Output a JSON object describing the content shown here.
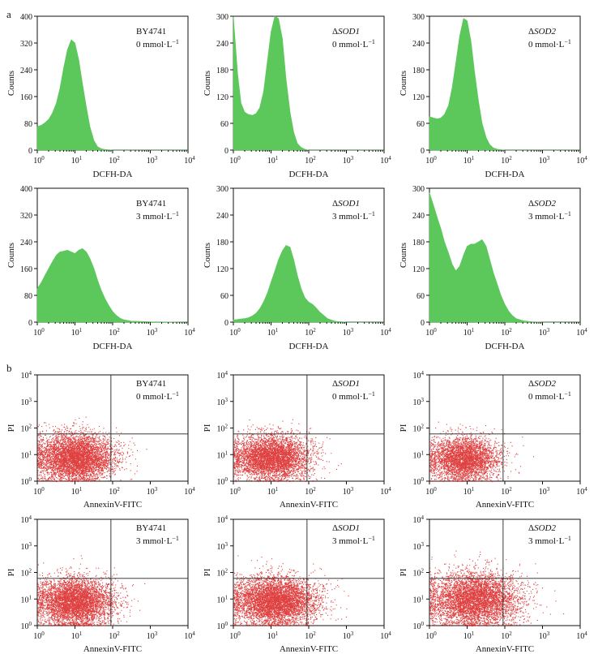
{
  "panel_labels": {
    "a": "a",
    "b": "b"
  },
  "histogram_axes": {
    "xlabel": "DCFH-DA",
    "ylabel": "Counts",
    "x_ticks": [
      1,
      10,
      100,
      1000,
      10000
    ],
    "x_tick_base": "10",
    "x_tick_exponents": [
      "0",
      "1",
      "2",
      "3",
      "4"
    ]
  },
  "scatter_axes": {
    "xlabel": "AnnexinV-FITC",
    "ylabel": "PI",
    "x_ticks": [
      1,
      10,
      100,
      1000,
      10000
    ],
    "y_ticks": [
      1,
      10,
      100,
      1000,
      10000
    ],
    "tick_base": "10",
    "tick_exponents": [
      "0",
      "1",
      "2",
      "3",
      "4"
    ]
  },
  "strains": {
    "wt": {
      "prefix": "",
      "name": "BY4741"
    },
    "sod1": {
      "prefix": "Δ",
      "name": "SOD1"
    },
    "sod2": {
      "prefix": "Δ",
      "name": "SOD2"
    }
  },
  "conditions": {
    "c0": {
      "conc": "0 mmol·L",
      "unit_exp": "−1"
    },
    "c3": {
      "conc": "3 mmol·L",
      "unit_exp": "−1"
    }
  },
  "colors": {
    "histogram_fill": "#5cc85c",
    "scatter_point": "#d92020",
    "axis": "#111111"
  },
  "chart_data": [
    {
      "type": "histogram",
      "panel": "a",
      "strain": "BY4741",
      "condition": "0 mmol·L−1",
      "xlabel": "DCFH-DA",
      "ylabel": "Counts",
      "x_scale": "log",
      "xlim": [
        1,
        10000
      ],
      "ylim": [
        0,
        400
      ],
      "y_ticks": [
        0,
        80,
        160,
        240,
        320,
        400
      ],
      "x": [
        1,
        1.3,
        1.6,
        2,
        2.5,
        3.2,
        4,
        5,
        6.3,
        8,
        10,
        12.6,
        15.8,
        20,
        25,
        32,
        40,
        50,
        63,
        79,
        100,
        1000,
        10000
      ],
      "counts": [
        70,
        75,
        82,
        92,
        110,
        140,
        185,
        245,
        300,
        330,
        320,
        270,
        200,
        130,
        70,
        28,
        10,
        4,
        2,
        1,
        0,
        0,
        0
      ]
    },
    {
      "type": "histogram",
      "panel": "a",
      "strain": "ΔSOD1",
      "condition": "0 mmol·L−1",
      "xlabel": "DCFH-DA",
      "ylabel": "Counts",
      "x_scale": "log",
      "xlim": [
        1,
        10000
      ],
      "ylim": [
        0,
        300
      ],
      "y_ticks": [
        0,
        60,
        120,
        180,
        240,
        300
      ],
      "x": [
        1,
        1.3,
        1.6,
        2,
        2.5,
        3.2,
        4,
        5,
        6.3,
        8,
        10,
        12.6,
        15.8,
        20,
        25,
        32,
        40,
        50,
        63,
        79,
        100,
        1000,
        10000
      ],
      "counts": [
        300,
        170,
        105,
        85,
        80,
        78,
        82,
        95,
        130,
        200,
        265,
        300,
        295,
        250,
        160,
        85,
        40,
        15,
        6,
        2,
        0,
        0,
        0
      ]
    },
    {
      "type": "histogram",
      "panel": "a",
      "strain": "ΔSOD2",
      "condition": "0 mmol·L−1",
      "xlabel": "DCFH-DA",
      "ylabel": "Counts",
      "x_scale": "log",
      "xlim": [
        1,
        10000
      ],
      "ylim": [
        0,
        300
      ],
      "y_ticks": [
        0,
        60,
        120,
        180,
        240,
        300
      ],
      "x": [
        1,
        1.3,
        1.6,
        2,
        2.5,
        3.2,
        4,
        5,
        6.3,
        8,
        10,
        12.6,
        15.8,
        20,
        25,
        32,
        40,
        50,
        63,
        79,
        100,
        1000,
        10000
      ],
      "counts": [
        75,
        72,
        70,
        72,
        80,
        100,
        140,
        195,
        255,
        295,
        290,
        245,
        175,
        110,
        60,
        28,
        12,
        5,
        2,
        1,
        0,
        0,
        0
      ]
    },
    {
      "type": "histogram",
      "panel": "a",
      "strain": "BY4741",
      "condition": "3 mmol·L−1",
      "xlabel": "DCFH-DA",
      "ylabel": "Counts",
      "x_scale": "log",
      "xlim": [
        1,
        10000
      ],
      "ylim": [
        0,
        400
      ],
      "y_ticks": [
        0,
        80,
        160,
        240,
        320,
        400
      ],
      "x": [
        1,
        1.3,
        1.6,
        2,
        2.5,
        3.2,
        4,
        5,
        6.3,
        8,
        10,
        12.6,
        15.8,
        20,
        25,
        32,
        40,
        50,
        63,
        79,
        100,
        126,
        158,
        200,
        316,
        1000,
        10000
      ],
      "counts": [
        100,
        120,
        140,
        160,
        180,
        200,
        210,
        212,
        215,
        210,
        205,
        215,
        220,
        210,
        190,
        160,
        125,
        95,
        70,
        50,
        32,
        20,
        12,
        7,
        3,
        1,
        0
      ]
    },
    {
      "type": "histogram",
      "panel": "a",
      "strain": "ΔSOD1",
      "condition": "3 mmol·L−1",
      "xlabel": "DCFH-DA",
      "ylabel": "Counts",
      "x_scale": "log",
      "xlim": [
        1,
        10000
      ],
      "ylim": [
        0,
        300
      ],
      "y_ticks": [
        0,
        60,
        120,
        180,
        240,
        300
      ],
      "x": [
        1,
        1.3,
        1.6,
        2,
        2.5,
        3.2,
        4,
        5,
        6.3,
        8,
        10,
        12.6,
        15.8,
        20,
        25,
        32,
        40,
        50,
        63,
        79,
        100,
        126,
        158,
        200,
        316,
        501,
        1000,
        10000
      ],
      "counts": [
        5,
        6,
        7,
        8,
        10,
        14,
        20,
        30,
        45,
        65,
        90,
        115,
        140,
        160,
        172,
        168,
        140,
        105,
        75,
        55,
        45,
        40,
        32,
        22,
        8,
        2,
        0,
        0
      ]
    },
    {
      "type": "histogram",
      "panel": "a",
      "strain": "ΔSOD2",
      "condition": "3 mmol·L−1",
      "xlabel": "DCFH-DA",
      "ylabel": "Counts",
      "x_scale": "log",
      "xlim": [
        1,
        10000
      ],
      "ylim": [
        0,
        300
      ],
      "y_ticks": [
        0,
        60,
        120,
        180,
        240,
        300
      ],
      "x": [
        1,
        1.3,
        1.6,
        2,
        2.5,
        3.2,
        4,
        5,
        6.3,
        8,
        10,
        12.6,
        15.8,
        20,
        25,
        32,
        40,
        50,
        63,
        79,
        100,
        126,
        158,
        200,
        316,
        501,
        1000,
        10000
      ],
      "counts": [
        290,
        260,
        235,
        210,
        180,
        155,
        130,
        115,
        125,
        150,
        170,
        175,
        175,
        180,
        185,
        170,
        140,
        110,
        85,
        60,
        40,
        25,
        15,
        8,
        3,
        1,
        0,
        0
      ]
    },
    {
      "type": "scatter",
      "panel": "b",
      "strain": "BY4741",
      "condition": "0 mmol·L−1",
      "xlabel": "AnnexinV-FITC",
      "ylabel": "PI",
      "x_scale": "log",
      "y_scale": "log",
      "xlim": [
        1,
        10000
      ],
      "ylim": [
        1,
        10000
      ],
      "quadrant_gate": {
        "x": 90,
        "y": 60
      },
      "population": {
        "center_log": [
          1.0,
          0.9
        ],
        "spread_log": [
          0.5,
          0.45
        ],
        "n": 5200
      }
    },
    {
      "type": "scatter",
      "panel": "b",
      "strain": "ΔSOD1",
      "condition": "0 mmol·L−1",
      "xlabel": "AnnexinV-FITC",
      "ylabel": "PI",
      "x_scale": "log",
      "y_scale": "log",
      "xlim": [
        1,
        10000
      ],
      "ylim": [
        1,
        10000
      ],
      "quadrant_gate": {
        "x": 90,
        "y": 60
      },
      "population": {
        "center_log": [
          1.0,
          0.9
        ],
        "spread_log": [
          0.5,
          0.42
        ],
        "n": 4600
      }
    },
    {
      "type": "scatter",
      "panel": "b",
      "strain": "ΔSOD2",
      "condition": "0 mmol·L−1",
      "xlabel": "AnnexinV-FITC",
      "ylabel": "PI",
      "x_scale": "log",
      "y_scale": "log",
      "xlim": [
        1,
        10000
      ],
      "ylim": [
        1,
        10000
      ],
      "quadrant_gate": {
        "x": 90,
        "y": 60
      },
      "population": {
        "center_log": [
          0.9,
          0.85
        ],
        "spread_log": [
          0.45,
          0.4
        ],
        "n": 3800
      }
    },
    {
      "type": "scatter",
      "panel": "b",
      "strain": "BY4741",
      "condition": "3 mmol·L−1",
      "xlabel": "AnnexinV-FITC",
      "ylabel": "PI",
      "x_scale": "log",
      "y_scale": "log",
      "xlim": [
        1,
        10000
      ],
      "ylim": [
        1,
        10000
      ],
      "quadrant_gate": {
        "x": 90,
        "y": 60
      },
      "population": {
        "center_log": [
          1.0,
          0.9
        ],
        "spread_log": [
          0.5,
          0.45
        ],
        "n": 5000
      }
    },
    {
      "type": "scatter",
      "panel": "b",
      "strain": "ΔSOD1",
      "condition": "3 mmol·L−1",
      "xlabel": "AnnexinV-FITC",
      "ylabel": "PI",
      "x_scale": "log",
      "y_scale": "log",
      "xlim": [
        1,
        10000
      ],
      "ylim": [
        1,
        10000
      ],
      "quadrant_gate": {
        "x": 90,
        "y": 60
      },
      "population": {
        "center_log": [
          1.1,
          0.95
        ],
        "spread_log": [
          0.55,
          0.45
        ],
        "n": 5400
      }
    },
    {
      "type": "scatter",
      "panel": "b",
      "strain": "ΔSOD2",
      "condition": "3 mmol·L−1",
      "xlabel": "AnnexinV-FITC",
      "ylabel": "PI",
      "x_scale": "log",
      "y_scale": "log",
      "xlim": [
        1,
        10000
      ],
      "ylim": [
        1,
        10000
      ],
      "quadrant_gate": {
        "x": 90,
        "y": 60
      },
      "population": {
        "center_log": [
          1.2,
          1.0
        ],
        "spread_log": [
          0.6,
          0.5
        ],
        "n": 5200
      }
    }
  ]
}
